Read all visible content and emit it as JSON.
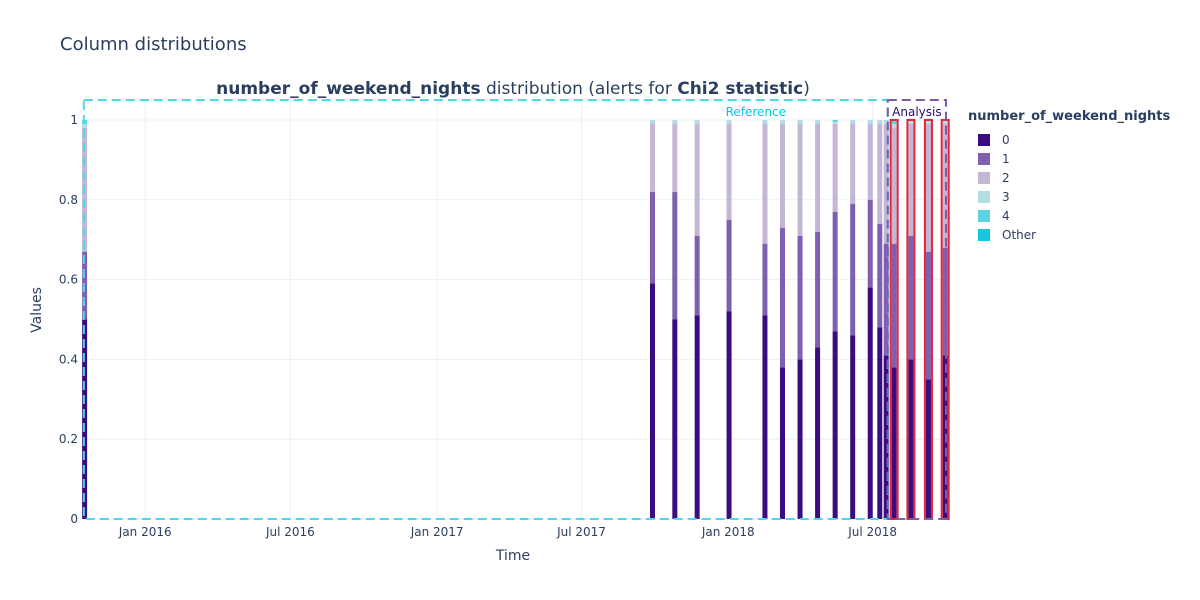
{
  "figure_title": "Column distributions",
  "chart_data": {
    "type": "bar",
    "stacked": true,
    "title_parts": [
      {
        "text": "number_of_weekend_nights",
        "bold": true
      },
      {
        "text": " distribution (alerts for ",
        "bold": false
      },
      {
        "text": "Chi2 statistic",
        "bold": true
      },
      {
        "text": ")",
        "bold": false
      }
    ],
    "xlabel": "Time",
    "ylabel": "Values",
    "x_ticks": [
      {
        "date": "2016-01-01",
        "label": "Jan 2016"
      },
      {
        "date": "2016-07-01",
        "label": "Jul 2016"
      },
      {
        "date": "2017-01-01",
        "label": "Jan 2017"
      },
      {
        "date": "2017-07-01",
        "label": "Jul 2017"
      },
      {
        "date": "2018-01-01",
        "label": "Jan 2018"
      },
      {
        "date": "2018-07-01",
        "label": "Jul 2018"
      }
    ],
    "x_range": [
      "2015-10-15",
      "2018-10-01"
    ],
    "y_range": [
      0,
      1.05
    ],
    "y_ticks": [
      {
        "value": 0,
        "label": "0"
      },
      {
        "value": 0.2,
        "label": "0.2"
      },
      {
        "value": 0.4,
        "label": "0.4"
      },
      {
        "value": 0.6,
        "label": "0.6"
      },
      {
        "value": 0.8,
        "label": "0.8"
      },
      {
        "value": 1,
        "label": "1"
      }
    ],
    "grid": true,
    "legend": {
      "title": "number_of_weekend_nights",
      "placement": "right",
      "items": [
        {
          "label": "0",
          "color": "#3a0c7f"
        },
        {
          "label": "1",
          "color": "#7f5faf"
        },
        {
          "label": "2",
          "color": "#c4b7d6"
        },
        {
          "label": "3",
          "color": "#b3dde2"
        },
        {
          "label": "4",
          "color": "#5bd4df"
        },
        {
          "label": "Other",
          "color": "#17c5dc"
        }
      ]
    },
    "periods": [
      {
        "name": "Reference",
        "start": "2015-10-16",
        "end": "2018-07-20",
        "color": "#4dd9e6",
        "label_color": "#00c8e5"
      },
      {
        "name": "Analysis",
        "start": "2018-07-20",
        "end": "2018-10-01",
        "color": "#7b5ea7",
        "label_color": "#2a0a6e"
      }
    ],
    "series": [
      {
        "name": "0",
        "color": "#3a0c7f"
      },
      {
        "name": "1",
        "color": "#7f5faf"
      },
      {
        "name": "2",
        "color": "#c4b7d6"
      },
      {
        "name": "3",
        "color": "#b3dde2"
      },
      {
        "name": "4",
        "color": "#5bd4df"
      },
      {
        "name": "Other",
        "color": "#17c5dc"
      }
    ],
    "bars": [
      {
        "date": "2015-10-17",
        "values": [
          0.5,
          0.17,
          0.31,
          0.01,
          0.01,
          0.0
        ],
        "alert": false
      },
      {
        "date": "2017-09-28",
        "values": [
          0.59,
          0.23,
          0.17,
          0.01,
          0.0,
          0.0
        ],
        "alert": false
      },
      {
        "date": "2017-10-26",
        "values": [
          0.5,
          0.32,
          0.17,
          0.01,
          0.0,
          0.0
        ],
        "alert": false
      },
      {
        "date": "2017-11-23",
        "values": [
          0.51,
          0.2,
          0.28,
          0.01,
          0.0,
          0.0
        ],
        "alert": false
      },
      {
        "date": "2018-01-02",
        "values": [
          0.52,
          0.23,
          0.24,
          0.01,
          0.0,
          0.0
        ],
        "alert": false
      },
      {
        "date": "2018-02-16",
        "values": [
          0.51,
          0.18,
          0.3,
          0.01,
          0.0,
          0.0
        ],
        "alert": false
      },
      {
        "date": "2018-03-10",
        "values": [
          0.38,
          0.35,
          0.26,
          0.01,
          0.0,
          0.0
        ],
        "alert": false
      },
      {
        "date": "2018-04-01",
        "values": [
          0.4,
          0.31,
          0.28,
          0.01,
          0.0,
          0.0
        ],
        "alert": false
      },
      {
        "date": "2018-04-23",
        "values": [
          0.43,
          0.29,
          0.27,
          0.01,
          0.0,
          0.0
        ],
        "alert": false
      },
      {
        "date": "2018-05-15",
        "values": [
          0.47,
          0.3,
          0.22,
          0.005,
          0.005,
          0.0
        ],
        "alert": false
      },
      {
        "date": "2018-06-06",
        "values": [
          0.46,
          0.33,
          0.2,
          0.01,
          0.0,
          0.0
        ],
        "alert": false
      },
      {
        "date": "2018-06-28",
        "values": [
          0.58,
          0.22,
          0.19,
          0.01,
          0.0,
          0.0
        ],
        "alert": false
      },
      {
        "date": "2018-07-10",
        "values": [
          0.48,
          0.26,
          0.25,
          0.01,
          0.0,
          0.0
        ],
        "alert": false
      },
      {
        "date": "2018-07-18",
        "values": [
          0.41,
          0.28,
          0.3,
          0.01,
          0.0,
          0.0
        ],
        "alert": false
      },
      {
        "date": "2018-07-28",
        "values": [
          0.38,
          0.31,
          0.29,
          0.01,
          0.01,
          0.0
        ],
        "alert": true
      },
      {
        "date": "2018-08-18",
        "values": [
          0.4,
          0.31,
          0.28,
          0.01,
          0.0,
          0.0
        ],
        "alert": true
      },
      {
        "date": "2018-09-09",
        "values": [
          0.35,
          0.32,
          0.32,
          0.01,
          0.0,
          0.0
        ],
        "alert": true
      },
      {
        "date": "2018-09-30",
        "values": [
          0.41,
          0.27,
          0.31,
          0.01,
          0.0,
          0.0
        ],
        "alert": true
      }
    ]
  }
}
